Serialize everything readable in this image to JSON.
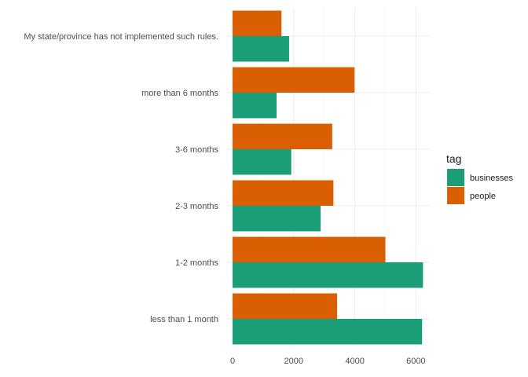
{
  "chart_data": {
    "type": "bar",
    "orientation": "horizontal",
    "categories": [
      "less than 1 month",
      "1-2 months",
      "2-3 months",
      "3-6 months",
      "more than 6 months",
      "My state/province has not implemented such rules."
    ],
    "series": [
      {
        "name": "businesses",
        "color": "#1b9e77",
        "values": [
          6200,
          6230,
          2880,
          1920,
          1440,
          1850
        ]
      },
      {
        "name": "people",
        "color": "#d95f02",
        "values": [
          3420,
          5000,
          3300,
          3260,
          3990,
          1600
        ]
      }
    ],
    "xlim": [
      0,
      6500
    ],
    "x_ticks": [
      0,
      2000,
      4000,
      6000
    ],
    "title": "",
    "xlabel": "",
    "ylabel": "",
    "legend": {
      "title": "tag",
      "position": "right"
    },
    "grid": true
  }
}
